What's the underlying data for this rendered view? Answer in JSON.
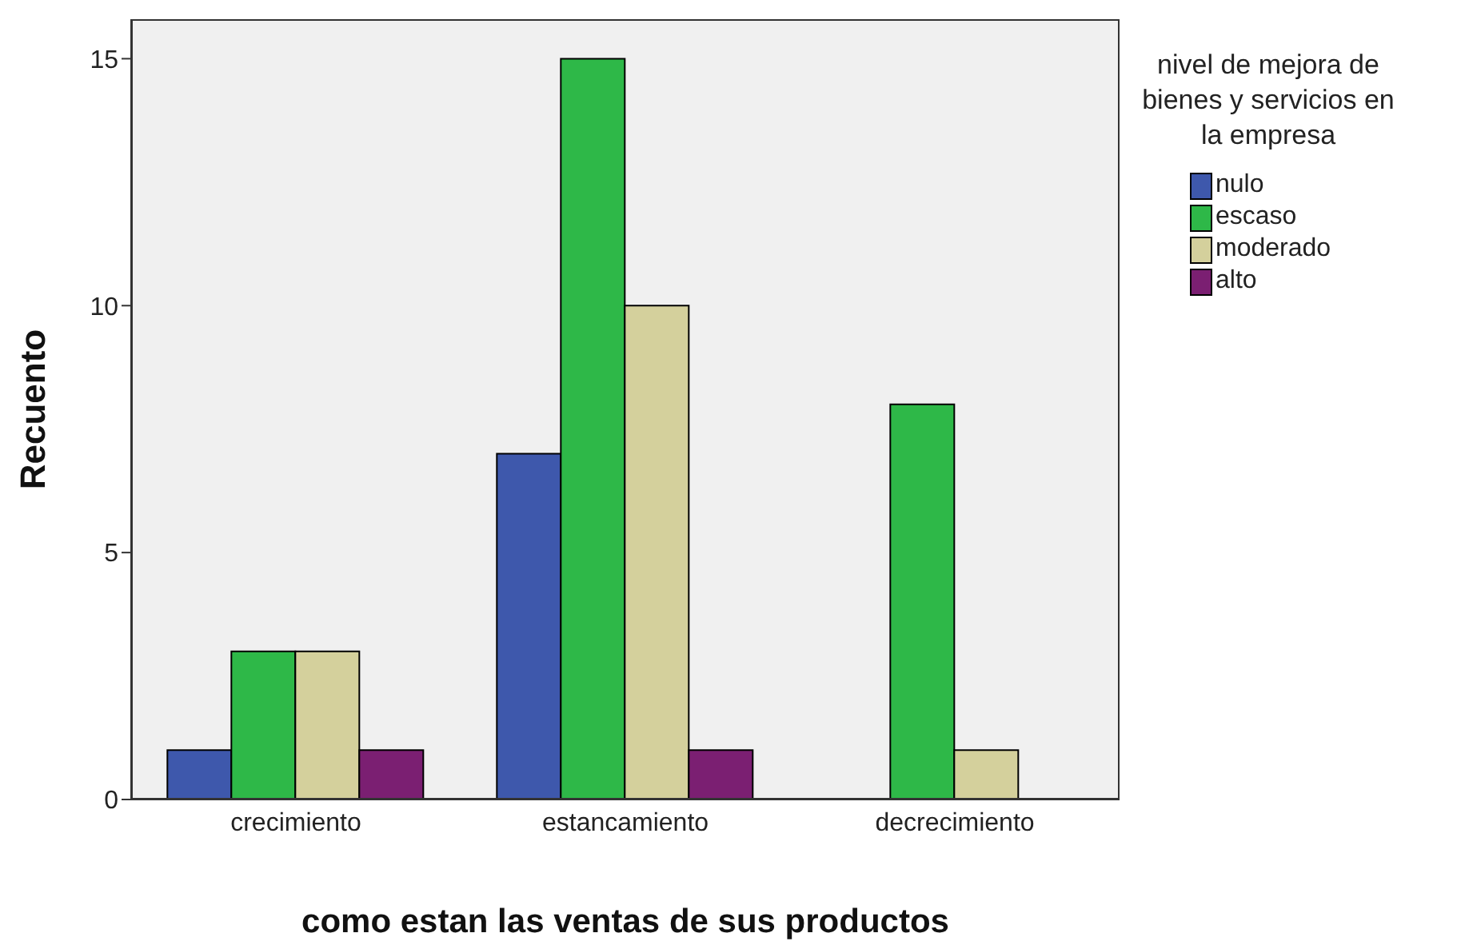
{
  "chart_data": {
    "type": "bar",
    "xlabel": "como estan las ventas de sus productos",
    "ylabel": "Recuento",
    "legend_title": "nivel de mejora de bienes y servicios en la empresa",
    "categories": [
      "crecimiento",
      "estancamiento",
      "decrecimiento"
    ],
    "series": [
      {
        "name": "nulo",
        "color": "#3e58ac",
        "values": [
          1,
          7,
          null
        ]
      },
      {
        "name": "escaso",
        "color": "#2eb848",
        "values": [
          3,
          15,
          8
        ]
      },
      {
        "name": "moderado",
        "color": "#d4d09c",
        "values": [
          3,
          10,
          1
        ]
      },
      {
        "name": "alto",
        "color": "#7b1f72",
        "values": [
          1,
          1,
          null
        ]
      }
    ],
    "ylim": [
      0,
      15.8
    ],
    "yticks": [
      0,
      5,
      10,
      15
    ],
    "grid": false,
    "legend": "right"
  }
}
